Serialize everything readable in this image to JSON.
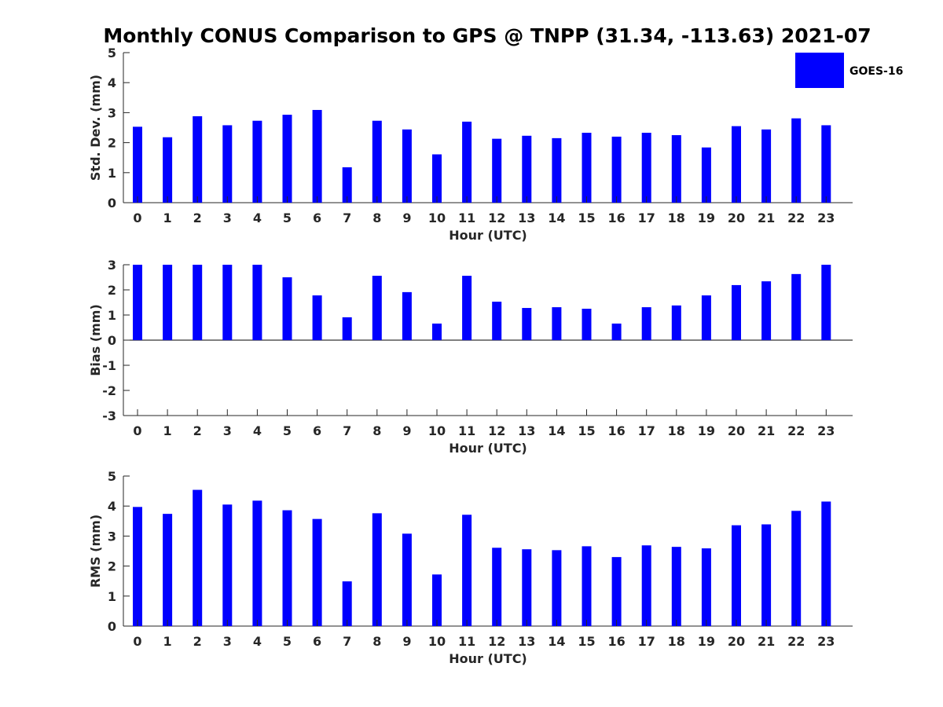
{
  "chart_data": {
    "type": "bar",
    "title": "Monthly CONUS Comparison to GPS @ TNPP (31.34, -113.63) 2021-07",
    "legend": {
      "entries": [
        "GOES-16"
      ],
      "placement": "top-right"
    },
    "colors": {
      "bar": "#0000ff",
      "axis": "#262626"
    },
    "subplots": [
      {
        "id": "std",
        "xlabel": "Hour (UTC)",
        "ylabel": "Std. Dev. (mm)",
        "ylim": [
          0,
          5
        ],
        "yticks": [
          0,
          1,
          2,
          3,
          4,
          5
        ],
        "categories": [
          "0",
          "1",
          "2",
          "3",
          "4",
          "5",
          "6",
          "7",
          "8",
          "9",
          "10",
          "11",
          "12",
          "13",
          "14",
          "15",
          "16",
          "17",
          "18",
          "19",
          "20",
          "21",
          "22",
          "23"
        ],
        "series": [
          {
            "name": "GOES-16",
            "values": [
              2.53,
              2.18,
              2.88,
              2.58,
              2.73,
              2.93,
              3.09,
              1.18,
              2.73,
              2.44,
              1.61,
              2.7,
              2.13,
              2.23,
              2.15,
              2.33,
              2.2,
              2.33,
              2.25,
              1.84,
              2.55,
              2.44,
              2.81,
              2.58
            ]
          }
        ]
      },
      {
        "id": "bias",
        "xlabel": "Hour (UTC)",
        "ylabel": "Bias (mm)",
        "ylim": [
          -3,
          3
        ],
        "yticks": [
          -3,
          -2,
          -1,
          0,
          1,
          2,
          3
        ],
        "categories": [
          "0",
          "1",
          "2",
          "3",
          "4",
          "5",
          "6",
          "7",
          "8",
          "9",
          "10",
          "11",
          "12",
          "13",
          "14",
          "15",
          "16",
          "17",
          "18",
          "19",
          "20",
          "21",
          "22",
          "23"
        ],
        "series": [
          {
            "name": "GOES-16",
            "values": [
              3.0,
              3.0,
              3.0,
              3.0,
              3.0,
              2.5,
              1.78,
              0.91,
              2.56,
              1.91,
              0.66,
              2.56,
              1.53,
              1.28,
              1.31,
              1.25,
              0.66,
              1.31,
              1.38,
              1.78,
              2.19,
              2.34,
              2.63,
              3.0
            ]
          }
        ]
      },
      {
        "id": "rms",
        "xlabel": "Hour (UTC)",
        "ylabel": "RMS (mm)",
        "ylim": [
          0,
          5
        ],
        "yticks": [
          0,
          1,
          2,
          3,
          4,
          5
        ],
        "categories": [
          "0",
          "1",
          "2",
          "3",
          "4",
          "5",
          "6",
          "7",
          "8",
          "9",
          "10",
          "11",
          "12",
          "13",
          "14",
          "15",
          "16",
          "17",
          "18",
          "19",
          "20",
          "21",
          "22",
          "23"
        ],
        "series": [
          {
            "name": "GOES-16",
            "values": [
              3.97,
              3.74,
              4.54,
              4.05,
              4.18,
              3.86,
              3.57,
              1.49,
              3.76,
              3.08,
              1.72,
              3.71,
              2.61,
              2.56,
              2.53,
              2.66,
              2.3,
              2.69,
              2.64,
              2.59,
              3.36,
              3.39,
              3.84,
              4.15
            ]
          }
        ]
      }
    ]
  }
}
